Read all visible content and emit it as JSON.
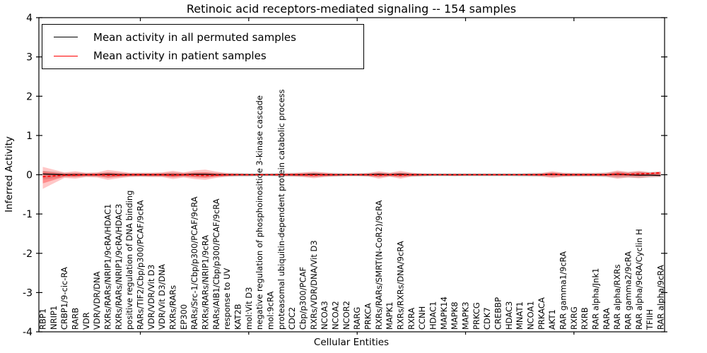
{
  "chart_data": {
    "type": "line",
    "title": "Retinoic acid receptors-mediated signaling -- 154 samples",
    "xlabel": "Cellular Entities",
    "ylabel": "Inferred Activity",
    "ylim": [
      -4,
      4
    ],
    "yticks": [
      -4,
      -3,
      -2,
      -1,
      0,
      1,
      2,
      3,
      4
    ],
    "xtick_indices": [
      9,
      19,
      29,
      39,
      49
    ],
    "grid": false,
    "legend_position": "upper-left",
    "categories": [
      "RBP1",
      "NRIP1",
      "CRBP1/9-cic-RA",
      "RARB",
      "VDR",
      "VDR/VDR/DNA",
      "RXRs/RARs/NRIP1/9cRA/HDAC1",
      "RXRs/RARs/NRIP1/9cRA/HDAC3",
      "positive regulation of DNA binding",
      "RARs/TIF2/Cbp/p300/PCAF/9cRA",
      "VDR/VDR/Vit D3",
      "VDR/Vit D3/DNA",
      "RXRs/RARs",
      "EP300",
      "RARs/Src-1/Cbp/p300/PCAF/9cRA",
      "RXRs/RARs/NRIP1/9cRA",
      "RARs/AIB1/Cbp/p300/PCAF/9cRA",
      "response to UV",
      "KAT2B",
      "mol:Vit D3",
      "negative regulation of phosphoinositide 3-kinase cascade",
      "mol:9cRA",
      "proteasomal ubiquitin-dependent protein catabolic process",
      "CDC2",
      "Cbp/p300/PCAF",
      "RXRs/VDR/DNA/Vit D3",
      "NCOA3",
      "NCOA2",
      "NCOR2",
      "RARG",
      "PRKCA",
      "RXRs/RARs/SMRT(N-CoR2)/9cRA",
      "MAPK1",
      "RXRs/RXRs/DNA/9cRA",
      "RXRA",
      "CCNH",
      "HDAC1",
      "MAPK14",
      "MAPK8",
      "MAPK3",
      "PRKCG",
      "CDK7",
      "CREBBP",
      "HDAC3",
      "MNAT1",
      "NCOA1",
      "PRKACA",
      "AKT1",
      "RAR gamma1/9cRA",
      "RXRG",
      "RXRB",
      "RAR alpha/Jnk1",
      "RARA",
      "RAR alpha/RXRs",
      "RAR gamma2/9cRA",
      "RAR alpha/9cRA/Cyclin H",
      "TFIIH",
      "RAR alpha/9cRA"
    ],
    "series": [
      {
        "name": "Mean activity in all permuted samples",
        "color": "#000000",
        "values": [
          0.02,
          0.01,
          0,
          0,
          0,
          0,
          0.01,
          0,
          0,
          0,
          0,
          0,
          0,
          0,
          0.01,
          0.01,
          0,
          0,
          0,
          0,
          0,
          0,
          0,
          0,
          0,
          0.01,
          0,
          0,
          0,
          0,
          0,
          0.01,
          0,
          0.01,
          0,
          0,
          0,
          0,
          0,
          0,
          0,
          0,
          0,
          0,
          0,
          0,
          0,
          0.01,
          0,
          0,
          0,
          0,
          0,
          0.01,
          0,
          -0.01,
          -0.01,
          -0.02
        ]
      },
      {
        "name": "Mean activity in patient samples",
        "color": "#ff0000",
        "values": [
          -0.05,
          -0.03,
          -0.01,
          -0.01,
          0,
          0,
          -0.01,
          -0.01,
          0,
          0,
          0,
          0,
          -0.01,
          0,
          -0.01,
          -0.02,
          -0.01,
          0,
          0,
          0,
          0,
          0,
          0,
          0,
          0,
          -0.01,
          0,
          0,
          0,
          0,
          0,
          -0.01,
          0,
          -0.01,
          0,
          0,
          0,
          0,
          0,
          0,
          0,
          0,
          0,
          0,
          0,
          0,
          0,
          0.01,
          0,
          0,
          0,
          0,
          0,
          0.02,
          0.01,
          0.02,
          0.03,
          0.05
        ]
      }
    ],
    "bands": [
      {
        "name": "permuted-samples-range",
        "color": "#999999",
        "opacity": 0.35,
        "upper": [
          0.1,
          0.08,
          0.05,
          0.05,
          0.05,
          0.05,
          0.06,
          0.05,
          0.05,
          0.05,
          0.05,
          0.05,
          0.06,
          0.05,
          0.06,
          0.06,
          0.05,
          0.05,
          0.05,
          0.04,
          0.04,
          0.04,
          0.05,
          0.05,
          0.05,
          0.06,
          0.05,
          0.05,
          0.04,
          0.04,
          0.05,
          0.06,
          0.05,
          0.06,
          0.05,
          0.04,
          0.04,
          0.04,
          0.04,
          0.04,
          0.04,
          0.04,
          0.04,
          0.04,
          0.04,
          0.05,
          0.05,
          0.06,
          0.05,
          0.05,
          0.05,
          0.05,
          0.06,
          0.08,
          0.07,
          0.08,
          0.07,
          0.08
        ],
        "lower": [
          -0.12,
          -0.09,
          -0.06,
          -0.06,
          -0.05,
          -0.05,
          -0.07,
          -0.06,
          -0.05,
          -0.05,
          -0.05,
          -0.05,
          -0.06,
          -0.05,
          -0.06,
          -0.06,
          -0.05,
          -0.05,
          -0.05,
          -0.05,
          -0.04,
          -0.04,
          -0.05,
          -0.05,
          -0.05,
          -0.06,
          -0.05,
          -0.05,
          -0.04,
          -0.04,
          -0.05,
          -0.06,
          -0.05,
          -0.06,
          -0.05,
          -0.05,
          -0.04,
          -0.04,
          -0.04,
          -0.04,
          -0.04,
          -0.04,
          -0.04,
          -0.04,
          -0.05,
          -0.05,
          -0.05,
          -0.06,
          -0.05,
          -0.05,
          -0.05,
          -0.05,
          -0.06,
          -0.08,
          -0.07,
          -0.08,
          -0.07,
          -0.06
        ]
      },
      {
        "name": "patient-samples-range-outer",
        "color": "#ff0000",
        "opacity": 0.22,
        "upper": [
          0.2,
          0.13,
          0.06,
          0.09,
          0.05,
          0.06,
          0.12,
          0.09,
          0.05,
          0.05,
          0.05,
          0.06,
          0.1,
          0.06,
          0.11,
          0.13,
          0.08,
          0.04,
          0.03,
          0.02,
          0.02,
          0.02,
          0.03,
          0.04,
          0.06,
          0.08,
          0.06,
          0.03,
          0.03,
          0.03,
          0.04,
          0.09,
          0.05,
          0.1,
          0.05,
          0.03,
          0.02,
          0.02,
          0.02,
          0.02,
          0.02,
          0.02,
          0.02,
          0.02,
          0.02,
          0.03,
          0.04,
          0.09,
          0.05,
          0.04,
          0.04,
          0.04,
          0.05,
          0.11,
          0.07,
          0.1,
          0.06,
          0.08
        ],
        "lower": [
          -0.36,
          -0.22,
          -0.08,
          -0.1,
          -0.06,
          -0.07,
          -0.13,
          -0.09,
          -0.06,
          -0.05,
          -0.06,
          -0.06,
          -0.11,
          -0.07,
          -0.11,
          -0.13,
          -0.08,
          -0.05,
          -0.03,
          -0.03,
          -0.02,
          -0.02,
          -0.03,
          -0.04,
          -0.06,
          -0.09,
          -0.06,
          -0.04,
          -0.03,
          -0.03,
          -0.04,
          -0.1,
          -0.05,
          -0.1,
          -0.05,
          -0.03,
          -0.02,
          -0.02,
          -0.03,
          -0.02,
          -0.02,
          -0.02,
          -0.02,
          -0.02,
          -0.02,
          -0.03,
          -0.04,
          -0.08,
          -0.05,
          -0.04,
          -0.04,
          -0.04,
          -0.05,
          -0.1,
          -0.07,
          -0.09,
          -0.06,
          -0.05
        ]
      },
      {
        "name": "patient-samples-range-inner",
        "color": "#ff0000",
        "opacity": 0.3,
        "scale_of_outer": 0.55
      }
    ]
  }
}
